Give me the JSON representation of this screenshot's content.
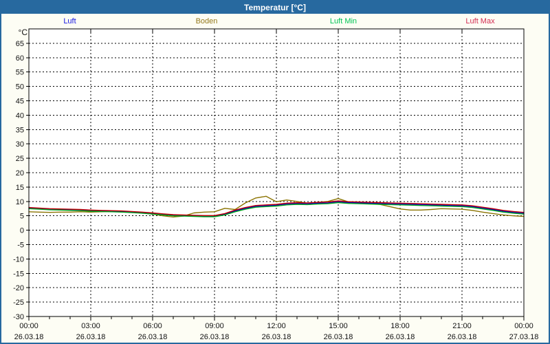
{
  "window": {
    "title": "Temperatur [°C]"
  },
  "colors": {
    "titlebar_bg": "#27699F",
    "window_border": "#27699F",
    "figure_bg": "#FDFDF4",
    "plot_bg": "#FFFFFF",
    "grid": "#000000",
    "axis_text": "#111111"
  },
  "legend": [
    {
      "label": "Luft",
      "color": "#1414E1"
    },
    {
      "label": "Boden",
      "color": "#94791C"
    },
    {
      "label": "Luft Min",
      "color": "#00C455"
    },
    {
      "label": "Luft Max",
      "color": "#D22B50"
    }
  ],
  "chart_data": {
    "type": "line",
    "title": "Temperatur [°C]",
    "xlabel": "",
    "ylabel": "°C",
    "ylim": [
      -30,
      70
    ],
    "ytick_min": -30,
    "ytick_max": 65,
    "ytick_step": 5,
    "grid": true,
    "legend_position": "top",
    "x_hours": [
      0,
      0.5,
      1,
      1.5,
      2,
      2.5,
      3,
      3.5,
      4,
      4.5,
      5,
      5.5,
      6,
      6.5,
      7,
      7.5,
      8,
      8.5,
      9,
      9.5,
      10,
      10.5,
      11,
      11.5,
      12,
      12.5,
      13,
      13.5,
      14,
      14.5,
      15,
      15.5,
      16,
      16.5,
      17,
      17.5,
      18,
      18.5,
      19,
      19.5,
      20,
      20.5,
      21,
      21.5,
      22,
      22.5,
      23,
      23.5,
      24
    ],
    "xticks": [
      {
        "hour": 0,
        "time": "00:00",
        "date": "26.03.18"
      },
      {
        "hour": 3,
        "time": "03:00",
        "date": "26.03.18"
      },
      {
        "hour": 6,
        "time": "06:00",
        "date": "26.03.18"
      },
      {
        "hour": 9,
        "time": "09:00",
        "date": "26.03.18"
      },
      {
        "hour": 12,
        "time": "12:00",
        "date": "26.03.18"
      },
      {
        "hour": 15,
        "time": "15:00",
        "date": "26.03.18"
      },
      {
        "hour": 18,
        "time": "18:00",
        "date": "26.03.18"
      },
      {
        "hour": 21,
        "time": "21:00",
        "date": "26.03.18"
      },
      {
        "hour": 24,
        "time": "00:00",
        "date": "27.03.18"
      }
    ],
    "series": [
      {
        "name": "Boden",
        "color": "#8B7300",
        "values": [
          6.4,
          6.3,
          6.2,
          6.3,
          6.3,
          6.4,
          6.3,
          6.4,
          6.5,
          6.4,
          6.3,
          6.0,
          5.6,
          5.0,
          4.6,
          4.9,
          6.0,
          6.3,
          6.4,
          7.6,
          7.2,
          9.5,
          11.2,
          11.8,
          9.9,
          10.5,
          10.0,
          9.4,
          9.7,
          10.0,
          11.0,
          9.8,
          9.6,
          9.3,
          9.0,
          8.2,
          7.4,
          7.0,
          7.0,
          7.2,
          7.5,
          7.4,
          7.3,
          6.9,
          6.3,
          5.8,
          5.3,
          5.0,
          4.8
        ]
      },
      {
        "name": "Luft",
        "color": "#0000C8",
        "values": [
          7.7,
          7.5,
          7.3,
          7.2,
          7.1,
          7.0,
          6.8,
          6.7,
          6.6,
          6.5,
          6.3,
          6.1,
          5.8,
          5.5,
          5.2,
          5.1,
          5.0,
          4.9,
          4.9,
          5.6,
          6.7,
          7.6,
          8.3,
          8.5,
          8.7,
          9.1,
          9.3,
          9.2,
          9.4,
          9.5,
          9.9,
          9.6,
          9.5,
          9.4,
          9.3,
          9.2,
          9.1,
          9.0,
          8.9,
          8.8,
          8.7,
          8.6,
          8.5,
          8.2,
          7.7,
          7.2,
          6.6,
          6.2,
          5.9
        ]
      },
      {
        "name": "Luft Min",
        "color": "#00A519",
        "values": [
          7.5,
          7.3,
          7.1,
          7.0,
          6.9,
          6.8,
          6.6,
          6.5,
          6.4,
          6.3,
          6.1,
          5.9,
          5.6,
          5.3,
          5.0,
          4.9,
          4.8,
          4.7,
          4.7,
          5.3,
          6.4,
          7.3,
          8.0,
          8.2,
          8.4,
          8.8,
          9.0,
          8.9,
          9.1,
          9.2,
          9.6,
          9.3,
          9.2,
          9.1,
          9.0,
          8.9,
          8.8,
          8.7,
          8.6,
          8.5,
          8.4,
          8.3,
          8.2,
          7.9,
          7.4,
          6.9,
          6.3,
          5.9,
          5.6
        ]
      },
      {
        "name": "Luft Max",
        "color": "#C00000",
        "values": [
          7.9,
          7.7,
          7.5,
          7.4,
          7.3,
          7.2,
          7.0,
          6.9,
          6.8,
          6.7,
          6.5,
          6.3,
          6.0,
          5.7,
          5.4,
          5.3,
          5.2,
          5.1,
          5.1,
          5.8,
          7.0,
          7.9,
          8.6,
          8.8,
          9.0,
          9.4,
          9.6,
          9.5,
          9.7,
          9.8,
          10.2,
          9.9,
          9.8,
          9.7,
          9.6,
          9.5,
          9.4,
          9.3,
          9.2,
          9.1,
          9.0,
          8.9,
          8.8,
          8.5,
          8.0,
          7.5,
          6.9,
          6.5,
          6.2
        ]
      }
    ]
  }
}
